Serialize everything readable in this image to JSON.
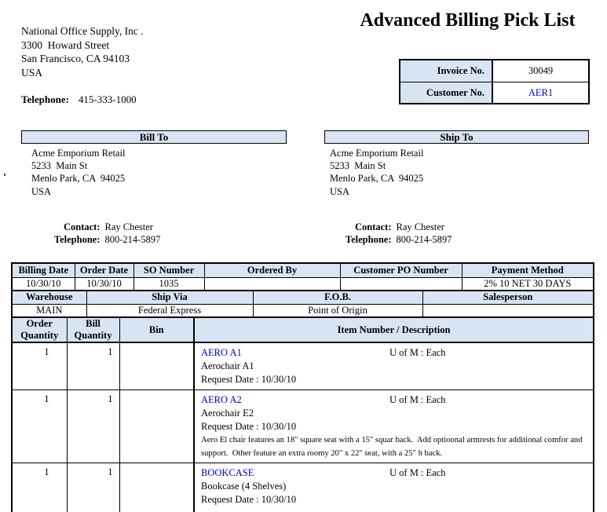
{
  "company": {
    "name": "National Office Supply, Inc .",
    "address_line1": "3300  Howard Street",
    "address_line2": "San Francisco, CA 94103",
    "address_line3": "USA",
    "telephone_label": "Telephone:",
    "telephone": "415-333-1000"
  },
  "title": "Advanced Billing Pick List",
  "invoice_box": {
    "invoice_no_label": "Invoice No.",
    "invoice_no": "30049",
    "customer_no_label": "Customer No.",
    "customer_no": "AER1"
  },
  "bill_to": {
    "header": "Bill To",
    "company": "Acme Emporium Retail",
    "address_line1": "5233  Main St",
    "address_line2": "Menlo Park, CA  94025",
    "address_line3": "USA",
    "contact_label": "Contact:",
    "contact": "Ray Chester",
    "telephone_label": "Telephone:",
    "telephone": "800-214-5897"
  },
  "ship_to": {
    "header": "Ship To",
    "company": "Acme Emporium Retail",
    "address_line1": "5233  Main St",
    "address_line2": "Menlo Park, CA  94025",
    "address_line3": "USA",
    "contact_label": "Contact:",
    "contact": "Ray Chester",
    "telephone_label": "Telephone:",
    "telephone": "800-214-5897"
  },
  "order_info": {
    "row1_headers": [
      "Billing Date",
      "Order Date",
      "SO Number",
      "Ordered By",
      "Customer PO Number",
      "Payment Method"
    ],
    "row1_values": [
      "10/30/10",
      "10/30/10",
      "1035",
      "",
      "",
      "2% 10 NET 30 DAYS"
    ],
    "row2_headers": [
      "Warehouse",
      "Ship Via",
      "F.O.B.",
      "Salesperson"
    ],
    "row2_values": [
      "MAIN",
      "Federal Express",
      "Point of Origin",
      ""
    ]
  },
  "items": {
    "headers": [
      "Order\nQuantity",
      "Bill\nQuantity",
      "Bin",
      "Item Number / Description"
    ],
    "rows": [
      {
        "order_qty": "1",
        "bill_qty": "1",
        "bin": "",
        "item_number": "AERO A1",
        "uofm": "U of M : Each",
        "description": "Aerochair A1",
        "request_date": "Request Date : 10/30/10",
        "long_description": ""
      },
      {
        "order_qty": "1",
        "bill_qty": "1",
        "bin": "",
        "item_number": "AERO A2",
        "uofm": "U of M : Each",
        "description": "Aerochair E2",
        "request_date": "Request Date : 10/30/10",
        "long_description": "Aero El chair features an 18\" square seat with a 15\" squar back.  Add optioonal armrests for additional comfor and support.  Other feature an extra roomy 20\" x 22\" seat, with a 25\" h back."
      },
      {
        "order_qty": "1",
        "bill_qty": "1",
        "bin": "",
        "item_number": "BOOKCASE",
        "uofm": "U of M : Each",
        "description": "Bookcase (4 Shelves)",
        "request_date": "Request Date : 10/30/10",
        "long_description": ""
      }
    ]
  },
  "colors": {
    "header_fill": "#d8e4f3",
    "border": "#000000",
    "link_blue": "#0000cc"
  }
}
